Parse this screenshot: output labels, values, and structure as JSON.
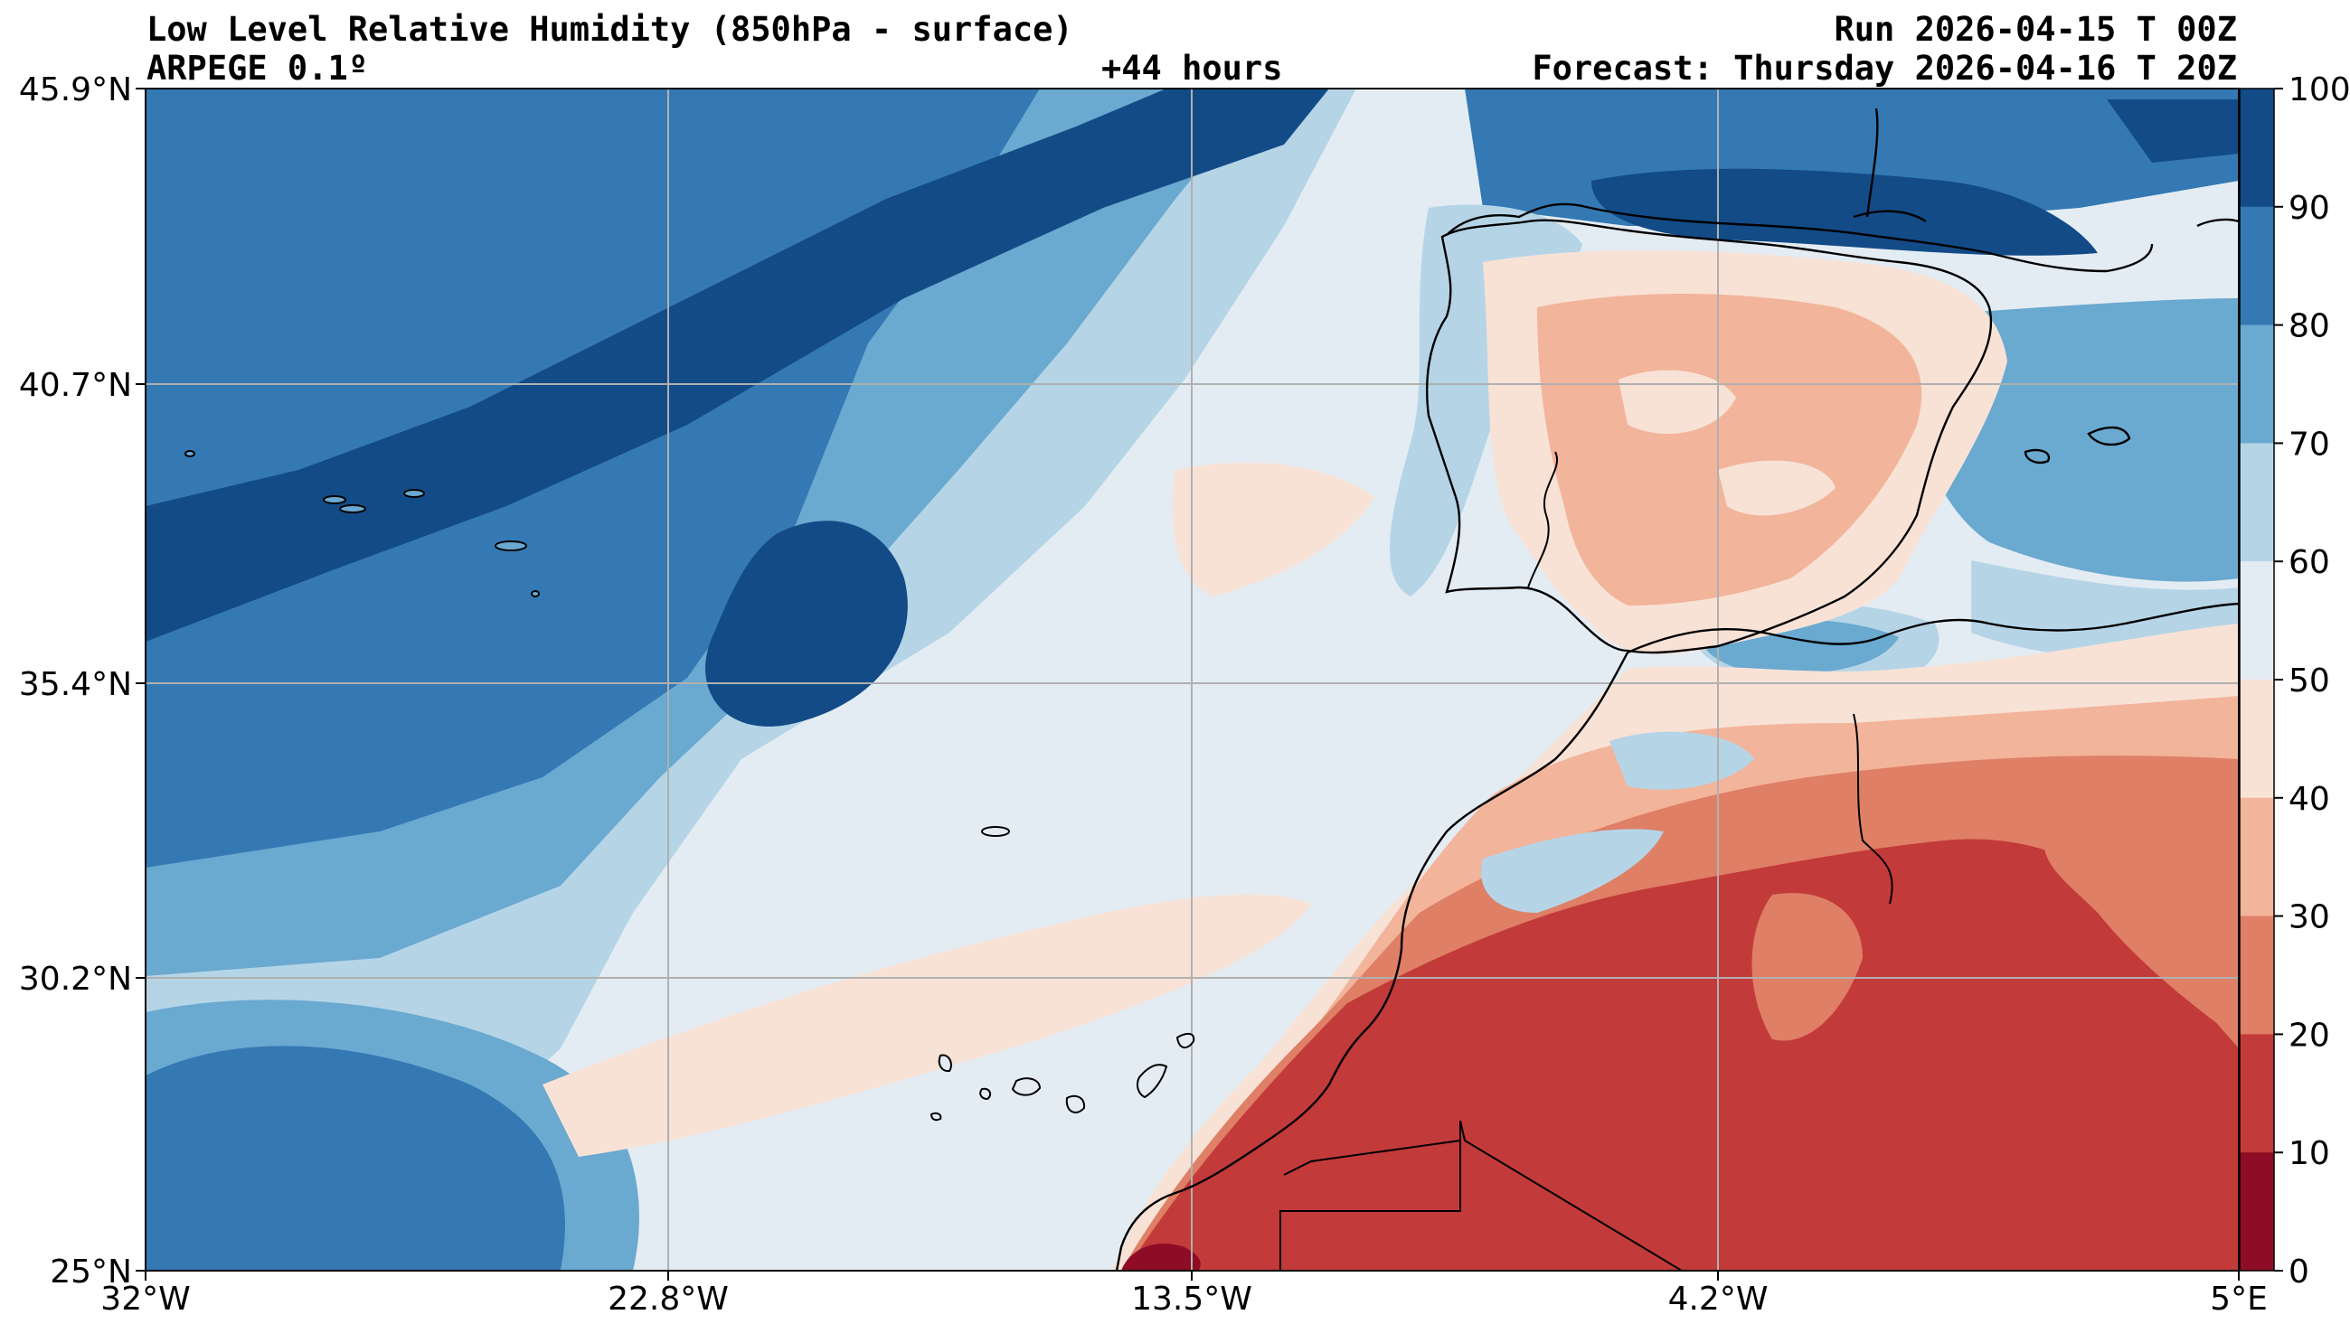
{
  "header": {
    "title": "Low Level Relative Humidity (850hPa - surface)",
    "model": "ARPEGE 0.1º",
    "lead_time": "+44 hours",
    "run": "Run 2026-04-15 T 00Z",
    "forecast": "Forecast: Thursday 2026-04-16 T 20Z"
  },
  "map": {
    "lat_labels": [
      "45.9°N",
      "40.7°N",
      "35.4°N",
      "30.2°N",
      "25°N"
    ],
    "lon_labels": [
      "32°W",
      "22.8°W",
      "13.5°W",
      "4.2°W",
      "5°E"
    ]
  },
  "colorbar": {
    "labels": [
      "100",
      "90",
      "80",
      "70",
      "60",
      "50",
      "40",
      "30",
      "20",
      "10",
      "0"
    ],
    "levels": [
      {
        "range": "90-100",
        "color": "#134b87"
      },
      {
        "range": "80-90",
        "color": "#3479b3"
      },
      {
        "range": "70-80",
        "color": "#6aa9d0"
      },
      {
        "range": "60-70",
        "color": "#b5d5e7"
      },
      {
        "range": "50-60",
        "color": "#e4ecf3"
      },
      {
        "range": "40-50",
        "color": "#f8e2d6"
      },
      {
        "range": "30-40",
        "color": "#f2b49a"
      },
      {
        "range": "20-30",
        "color": "#de7f66"
      },
      {
        "range": "10-20",
        "color": "#c33a3a"
      },
      {
        "range": "0-10",
        "color": "#8e0c25"
      }
    ]
  }
}
